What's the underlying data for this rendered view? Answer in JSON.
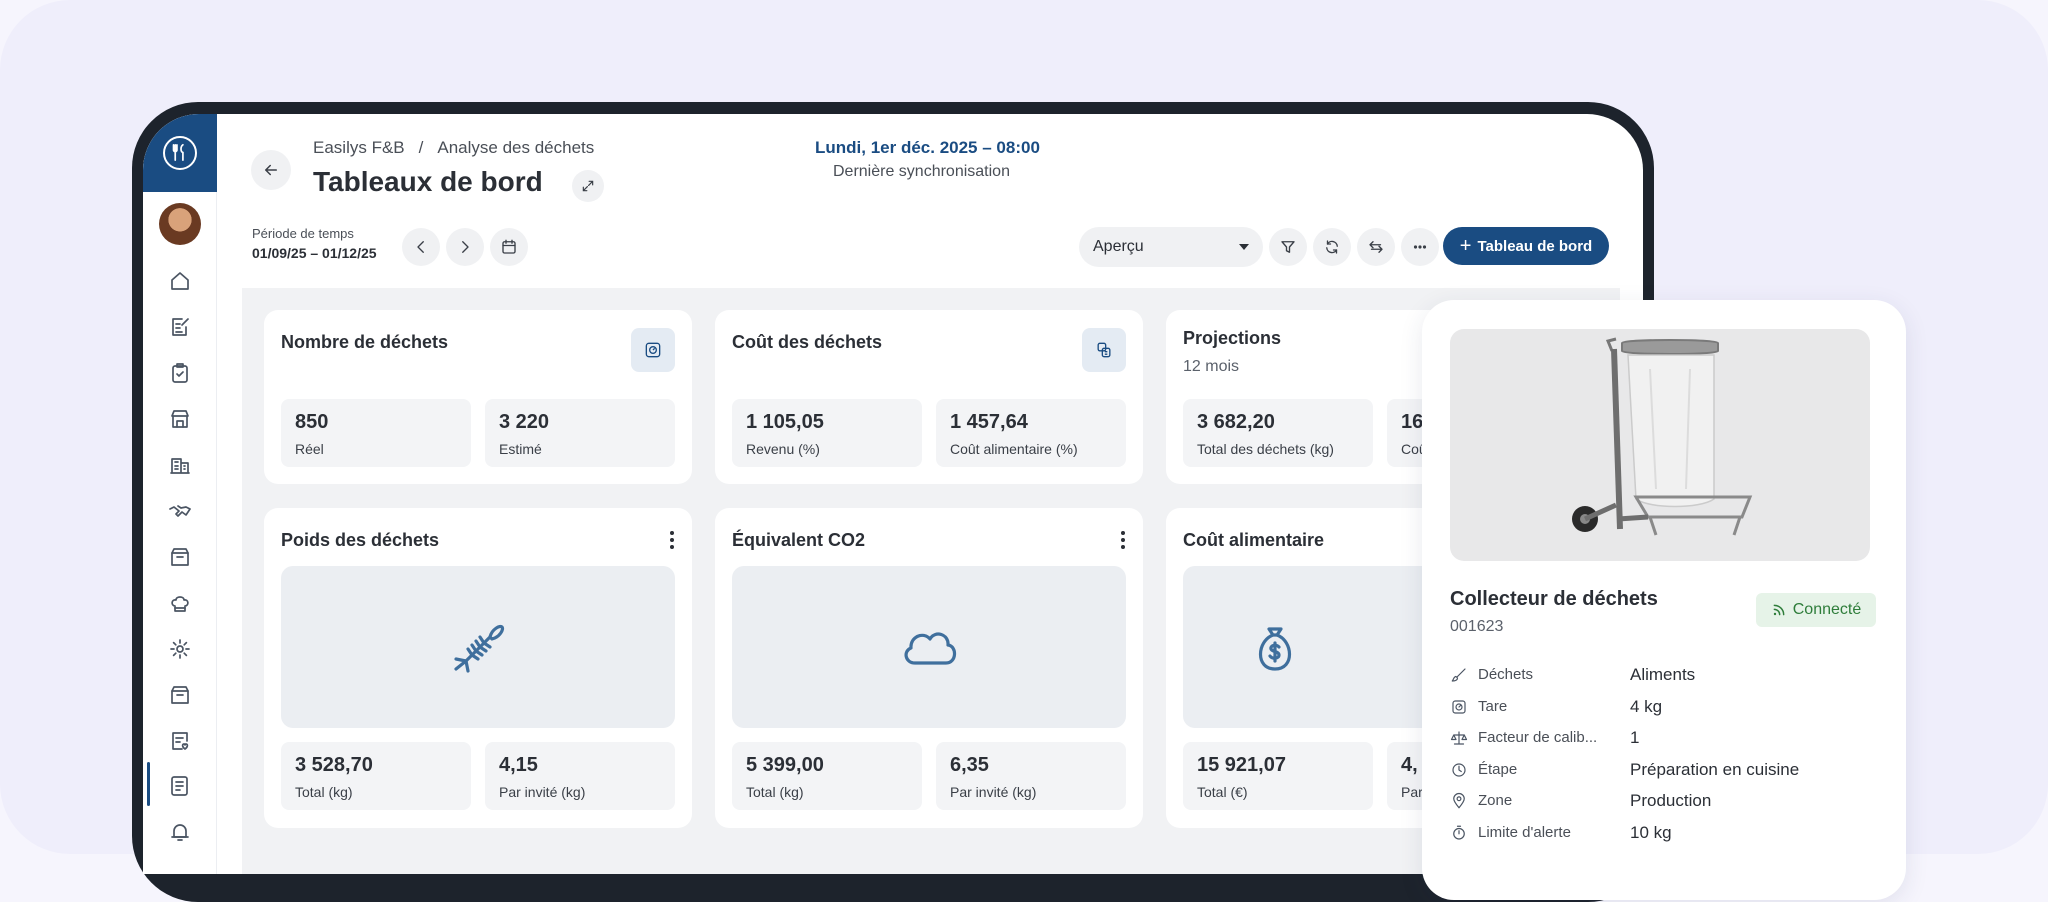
{
  "breadcrumb": {
    "org": "Easilys F&B",
    "separator": "/",
    "page": "Analyse des déchets"
  },
  "title": "Tableaux de bord",
  "sync": {
    "date": "Lundi, 1er déc. 2025 – 08:00",
    "label": "Dernière synchronisation"
  },
  "period": {
    "label": "Période de temps",
    "value": "01/09/25 – 01/12/25"
  },
  "view_select": {
    "value": "Aperçu"
  },
  "add_button": {
    "label": "Tableau de bord"
  },
  "cards": {
    "waste_count": {
      "title": "Nombre de déchets",
      "stats": [
        {
          "value": "850",
          "label": "Réel"
        },
        {
          "value": "3 220",
          "label": "Estimé"
        }
      ]
    },
    "waste_cost": {
      "title": "Coût des déchets",
      "stats": [
        {
          "value": "1 105,05",
          "label": "Revenu (%)"
        },
        {
          "value": "1 457,64",
          "label": "Coût alimentaire (%)"
        }
      ]
    },
    "projections": {
      "title": "Projections",
      "subtitle": "12 mois",
      "stats": [
        {
          "value": "3 682,20",
          "label": "Total des déchets (kg)"
        },
        {
          "value": "16",
          "label": "Coû"
        }
      ]
    },
    "waste_weight": {
      "title": "Poids des déchets",
      "stats": [
        {
          "value": "3 528,70",
          "label": "Total (kg)"
        },
        {
          "value": "4,15",
          "label": "Par invité (kg)"
        }
      ]
    },
    "co2": {
      "title": "Équivalent CO2",
      "stats": [
        {
          "value": "5 399,00",
          "label": "Total (kg)"
        },
        {
          "value": "6,35",
          "label": "Par invité (kg)"
        }
      ]
    },
    "food_cost": {
      "title": "Coût alimentaire",
      "stats": [
        {
          "value": "15 921,07",
          "label": "Total (€)"
        },
        {
          "value": "4,",
          "label": "Par"
        }
      ]
    }
  },
  "panel": {
    "title": "Collecteur de déchets",
    "id": "001623",
    "status": "Connecté",
    "props": [
      {
        "icon": "brush-icon",
        "key": "Déchets",
        "value": "Aliments"
      },
      {
        "icon": "scale-icon",
        "key": "Tare",
        "value": "4 kg"
      },
      {
        "icon": "balance-icon",
        "key": "Facteur de calib...",
        "value": "1"
      },
      {
        "icon": "clock-icon",
        "key": "Étape",
        "value": "Préparation en cuisine"
      },
      {
        "icon": "location-pin-icon",
        "key": "Zone",
        "value": "Production"
      },
      {
        "icon": "timer-icon",
        "key": "Limite d'alerte",
        "value": "10 kg"
      }
    ]
  }
}
